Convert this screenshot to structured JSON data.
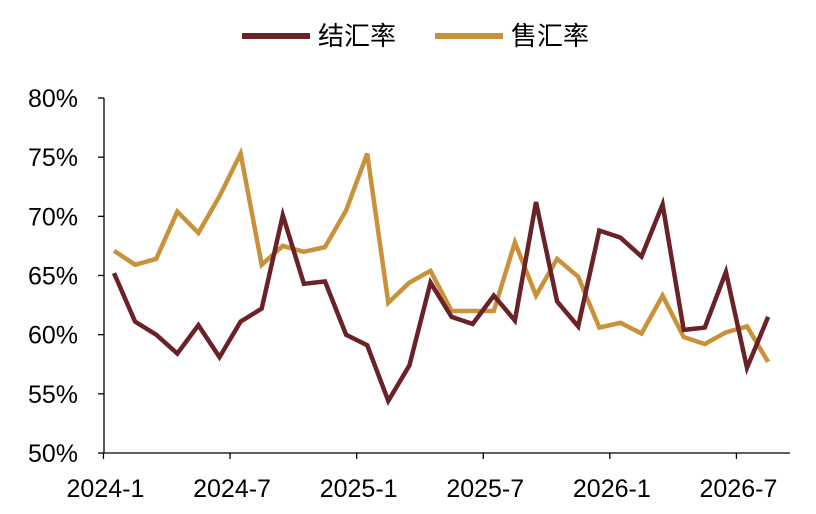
{
  "chart_data": {
    "type": "line",
    "title": "",
    "xlabel": "",
    "ylabel": "",
    "x": [
      "2024-1",
      "2024-2",
      "2024-3",
      "2024-4",
      "2024-5",
      "2024-6",
      "2024-7",
      "2024-8",
      "2024-9",
      "2024-10",
      "2024-11",
      "2024-12",
      "2025-1",
      "2025-2",
      "2025-3",
      "2025-4",
      "2025-5",
      "2025-6",
      "2025-7",
      "2025-8",
      "2025-9",
      "2025-10",
      "2025-11",
      "2025-12",
      "2026-1",
      "2026-2",
      "2026-3",
      "2026-4",
      "2026-5",
      "2026-6",
      "2026-7",
      "2026-8"
    ],
    "x_tick_labels": [
      "2024-1",
      "2024-7",
      "2025-1",
      "2025-7",
      "2026-1",
      "2026-7"
    ],
    "y_tick_labels": [
      "50%",
      "55%",
      "60%",
      "65%",
      "70%",
      "75%",
      "80%"
    ],
    "ylim": [
      50,
      80
    ],
    "y_unit": "%",
    "grid": false,
    "legend_position": "top-center",
    "series": [
      {
        "name": "结汇率",
        "color": "#6b2226",
        "values": [
          65.2,
          61.1,
          60.0,
          58.4,
          60.8,
          58.1,
          61.1,
          62.2,
          70.1,
          64.3,
          64.5,
          60.0,
          59.1,
          54.4,
          57.4,
          64.4,
          61.5,
          60.9,
          63.3,
          61.2,
          71.2,
          62.8,
          60.7,
          68.8,
          68.2,
          66.6,
          71.0,
          60.4,
          60.6,
          65.3,
          57.2,
          61.5
        ]
      },
      {
        "name": "售汇率",
        "color": "#c9913a",
        "values": [
          67.1,
          65.9,
          66.4,
          70.4,
          68.6,
          71.7,
          75.3,
          65.9,
          67.5,
          67.0,
          67.4,
          70.5,
          75.3,
          62.7,
          64.4,
          65.4,
          62.0,
          62.0,
          62.0,
          67.8,
          63.3,
          66.4,
          64.9,
          60.6,
          61.0,
          60.1,
          63.3,
          59.8,
          59.2,
          60.2,
          60.7,
          57.7
        ]
      }
    ]
  }
}
